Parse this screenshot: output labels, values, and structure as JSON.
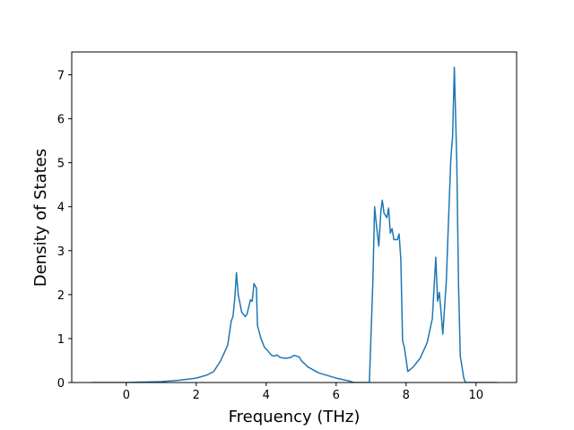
{
  "chart_data": {
    "type": "line",
    "xlabel": "Frequency (THz)",
    "ylabel": "Density of States",
    "x": [
      -0.98,
      0,
      1,
      1.5,
      2,
      2.3,
      2.5,
      2.7,
      2.9,
      3.0,
      3.05,
      3.1,
      3.15,
      3.2,
      3.3,
      3.4,
      3.45,
      3.55,
      3.6,
      3.65,
      3.72,
      3.75,
      3.85,
      3.95,
      4.05,
      4.15,
      4.25,
      4.3,
      4.4,
      4.55,
      4.7,
      4.8,
      4.95,
      5.0,
      5.2,
      5.5,
      6.0,
      6.4,
      6.5,
      6.95,
      7.05,
      7.1,
      7.15,
      7.22,
      7.28,
      7.32,
      7.37,
      7.45,
      7.5,
      7.55,
      7.6,
      7.65,
      7.75,
      7.8,
      7.85,
      7.9,
      7.95,
      8.05,
      8.2,
      8.4,
      8.6,
      8.75,
      8.85,
      8.9,
      8.95,
      9.0,
      9.05,
      9.15,
      9.2,
      9.28,
      9.33,
      9.38,
      9.45,
      9.5,
      9.55,
      9.65,
      9.7,
      10.6
    ],
    "series": [
      {
        "name": "DOS",
        "color": "#1f77b4",
        "values": [
          0,
          0,
          0.02,
          0.05,
          0.1,
          0.17,
          0.25,
          0.5,
          0.85,
          1.4,
          1.5,
          1.9,
          2.5,
          2.0,
          1.6,
          1.5,
          1.55,
          1.88,
          1.85,
          2.25,
          2.15,
          1.3,
          1.0,
          0.8,
          0.72,
          0.62,
          0.6,
          0.63,
          0.57,
          0.55,
          0.57,
          0.62,
          0.58,
          0.5,
          0.35,
          0.22,
          0.1,
          0.03,
          0,
          0,
          2.3,
          4.0,
          3.6,
          3.1,
          3.9,
          4.15,
          3.85,
          3.75,
          3.97,
          3.4,
          3.5,
          3.25,
          3.25,
          3.38,
          2.8,
          0.95,
          0.8,
          0.25,
          0.35,
          0.55,
          0.9,
          1.45,
          2.85,
          1.85,
          2.05,
          1.6,
          1.1,
          2.3,
          3.4,
          5.1,
          5.6,
          7.17,
          5.0,
          2.2,
          0.6,
          0.1,
          0,
          0
        ]
      }
    ],
    "xlim": [
      -1.56,
      11.16
    ],
    "xticks": [
      0,
      2,
      4,
      6,
      8,
      10
    ],
    "ylim": [
      0,
      7.52
    ],
    "yticks": [
      0,
      1,
      2,
      3,
      4,
      5,
      6,
      7
    ]
  }
}
